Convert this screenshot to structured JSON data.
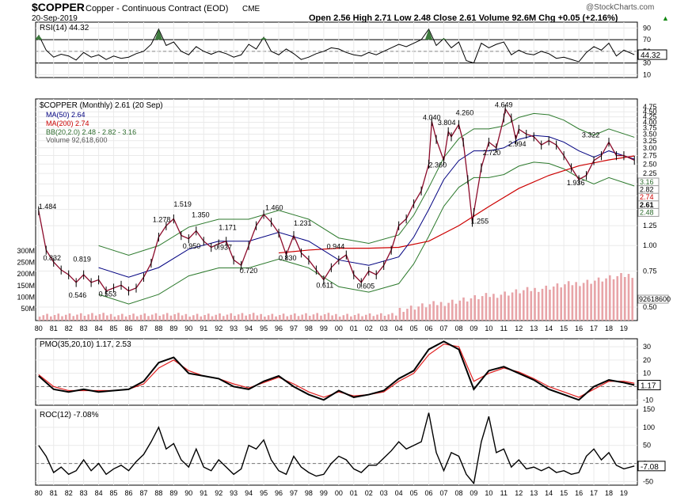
{
  "header": {
    "symbol": "$COPPER",
    "description": "Copper - Continuous Contract (EOD)",
    "exchange": "CME",
    "date": "20-Sep-2019",
    "watermark": "@StockCharts.com",
    "ohlc": "Open 2.56  High 2.71  Low 2.48  Close 2.61  Volume 92.6M  Chg +0.05 (+2.16%)",
    "ohlc_arrow": "▲"
  },
  "chart_data": [
    {
      "type": "line",
      "panel": "rsi",
      "title": "RSI(14) 44.32",
      "ylim": [
        5,
        100
      ],
      "yticks": [
        10,
        30,
        50,
        70,
        90
      ],
      "overbought": 70,
      "oversold": 30,
      "last_label": "44.32",
      "series": [
        {
          "x": [
            1980,
            1980.5,
            1981,
            1981.5,
            1982,
            1982.5,
            1983,
            1983.5,
            1984,
            1984.5,
            1985,
            1985.5,
            1986,
            1986.5,
            1987,
            1987.5,
            1988,
            1988.5,
            1989,
            1989.5,
            1990,
            1990.5,
            1991,
            1991.5,
            1992,
            1992.5,
            1993,
            1993.5,
            1994,
            1994.5,
            1995,
            1995.5,
            1996,
            1996.5,
            1997,
            1997.5,
            1998,
            1998.5,
            1999,
            1999.5,
            2000,
            2000.5,
            2001,
            2001.5,
            2002,
            2002.5,
            2003,
            2003.5,
            2004,
            2004.5,
            2005,
            2005.5,
            2006,
            2006.5,
            2007,
            2007.5,
            2008,
            2008.5,
            2009,
            2009.5,
            2010,
            2010.5,
            2011,
            2011.5,
            2012,
            2012.5,
            2013,
            2013.5,
            2014,
            2014.5,
            2015,
            2015.5,
            2016,
            2016.5,
            2017,
            2017.5,
            2018,
            2018.5,
            2019,
            2019.7
          ],
          "y": [
            78,
            52,
            40,
            45,
            42,
            35,
            48,
            40,
            44,
            36,
            42,
            38,
            40,
            46,
            50,
            62,
            88,
            60,
            66,
            50,
            44,
            58,
            50,
            45,
            50,
            46,
            40,
            44,
            62,
            54,
            74,
            50,
            44,
            54,
            46,
            36,
            40,
            46,
            50,
            56,
            54,
            48,
            44,
            42,
            48,
            44,
            50,
            56,
            62,
            58,
            64,
            70,
            88,
            60,
            72,
            56,
            66,
            34,
            30,
            64,
            56,
            62,
            66,
            44,
            52,
            46,
            44,
            50,
            46,
            38,
            40,
            36,
            32,
            48,
            58,
            52,
            64,
            42,
            52,
            44.32
          ]
        }
      ]
    },
    {
      "type": "line",
      "panel": "price",
      "title": "$COPPER (Monthly) 2.61 (20 Sep)",
      "scale": "log",
      "ylim": [
        0.43,
        5.2
      ],
      "yticks": [
        0.5,
        0.75,
        1.0,
        1.25,
        1.5,
        1.75,
        2.0,
        2.25,
        2.5,
        2.75,
        3.0,
        3.25,
        3.5,
        3.75,
        4.0,
        4.25,
        4.5,
        4.75
      ],
      "xticks": [
        "80",
        "81",
        "82",
        "83",
        "84",
        "85",
        "86",
        "87",
        "88",
        "89",
        "90",
        "91",
        "92",
        "93",
        "94",
        "95",
        "96",
        "97",
        "98",
        "99",
        "00",
        "01",
        "02",
        "03",
        "04",
        "05",
        "06",
        "07",
        "08",
        "09",
        "10",
        "11",
        "12",
        "13",
        "14",
        "15",
        "16",
        "17",
        "18",
        "19"
      ],
      "legend": [
        "MA(50) 2.64",
        "MA(200) 2.74",
        "BB(20,2.0) 2.48 - 2.82 - 3.16",
        "Volume 92,618,600"
      ],
      "series": [
        {
          "name": "$COPPER",
          "x": [
            1980,
            1980.5,
            1981,
            1981.5,
            1982,
            1982.5,
            1983,
            1983.5,
            1984,
            1984.5,
            1985,
            1985.5,
            1986,
            1986.5,
            1987,
            1987.5,
            1988,
            1988.5,
            1989,
            1989.5,
            1990,
            1990.5,
            1991,
            1991.5,
            1992,
            1992.5,
            1993,
            1993.5,
            1994,
            1994.5,
            1995,
            1995.5,
            1996,
            1996.5,
            1997,
            1997.5,
            1998,
            1998.5,
            1999,
            1999.5,
            2000,
            2000.5,
            2001,
            2001.5,
            2002,
            2002.5,
            2003,
            2003.5,
            2004,
            2004.5,
            2005,
            2005.5,
            2006,
            2006.2,
            2006.5,
            2007,
            2007.3,
            2007.5,
            2008,
            2008.3,
            2008.6,
            2008.9,
            2009,
            2009.5,
            2010,
            2010.5,
            2011,
            2011.1,
            2011.5,
            2011.8,
            2012,
            2012.5,
            2013,
            2013.5,
            2014,
            2014.5,
            2015,
            2015.5,
            2016,
            2016.5,
            2017,
            2017.5,
            2018,
            2018.5,
            2019,
            2019.7
          ],
          "y": [
            1.48,
            0.95,
            0.83,
            0.76,
            0.72,
            0.66,
            0.72,
            0.66,
            0.68,
            0.6,
            0.62,
            0.64,
            0.6,
            0.62,
            0.7,
            0.82,
            1.1,
            1.25,
            1.35,
            1.12,
            1.08,
            1.18,
            1.05,
            0.98,
            1.02,
            1.05,
            0.85,
            0.8,
            1.0,
            1.25,
            1.42,
            1.3,
            1.15,
            0.9,
            1.12,
            0.92,
            0.85,
            0.76,
            0.68,
            0.78,
            0.85,
            0.9,
            0.72,
            0.66,
            0.75,
            0.72,
            0.8,
            0.95,
            1.25,
            1.35,
            1.6,
            1.85,
            2.5,
            4.04,
            3.3,
            2.6,
            3.6,
            3.4,
            3.9,
            3.2,
            2.1,
            1.3,
            1.45,
            2.4,
            3.2,
            3.0,
            4.2,
            4.65,
            4.2,
            3.3,
            3.7,
            3.5,
            3.4,
            3.1,
            3.25,
            3.1,
            2.75,
            2.4,
            2.1,
            2.2,
            2.6,
            2.75,
            3.2,
            2.75,
            2.75,
            2.61
          ]
        },
        {
          "name": "MA(50)",
          "x": [
            1984,
            1986,
            1988,
            1990,
            1992,
            1994,
            1996,
            1998,
            2000,
            2002,
            2004,
            2005,
            2006,
            2007,
            2008,
            2009,
            2010,
            2011,
            2012,
            2013,
            2014,
            2015,
            2016,
            2017,
            2018,
            2019.7
          ],
          "y": [
            0.78,
            0.7,
            0.78,
            0.96,
            1.05,
            1.05,
            1.16,
            1.05,
            0.85,
            0.8,
            0.88,
            1.1,
            1.5,
            2.1,
            2.6,
            2.9,
            2.9,
            3.0,
            3.3,
            3.45,
            3.4,
            3.2,
            2.9,
            2.7,
            2.9,
            2.64
          ]
        },
        {
          "name": "MA(200)",
          "x": [
            1996,
            1998,
            2000,
            2002,
            2004,
            2006,
            2008,
            2010,
            2012,
            2014,
            2016,
            2018,
            2019.7
          ],
          "y": [
            0.92,
            0.95,
            0.97,
            0.97,
            0.98,
            1.05,
            1.25,
            1.55,
            1.9,
            2.2,
            2.45,
            2.62,
            2.74
          ]
        }
      ],
      "annotations": [
        {
          "x": 1980.0,
          "y": 1.484,
          "text": "1.484"
        },
        {
          "x": 1980.3,
          "y": 0.832,
          "text": "0.832"
        },
        {
          "x": 1982.3,
          "y": 0.819,
          "text": "0.819"
        },
        {
          "x": 1982.0,
          "y": 0.546,
          "text": "0.546"
        },
        {
          "x": 1984.0,
          "y": 0.553,
          "text": "0.553"
        },
        {
          "x": 1987.6,
          "y": 1.278,
          "text": "1.278"
        },
        {
          "x": 1989.0,
          "y": 1.519,
          "text": "1.519"
        },
        {
          "x": 1990.2,
          "y": 1.35,
          "text": "1.350"
        },
        {
          "x": 1989.6,
          "y": 0.95,
          "text": "0.950"
        },
        {
          "x": 1992.0,
          "y": 1.171,
          "text": "1.171"
        },
        {
          "x": 1991.7,
          "y": 0.937,
          "text": "0.937"
        },
        {
          "x": 1993.4,
          "y": 0.72,
          "text": "0.720"
        },
        {
          "x": 1995.1,
          "y": 1.46,
          "text": "1.460"
        },
        {
          "x": 1997.0,
          "y": 1.231,
          "text": "1.231"
        },
        {
          "x": 1996.0,
          "y": 0.83,
          "text": "0.830"
        },
        {
          "x": 1999.2,
          "y": 0.944,
          "text": "0.944"
        },
        {
          "x": 1998.5,
          "y": 0.611,
          "text": "0.611"
        },
        {
          "x": 2001.2,
          "y": 0.605,
          "text": "0.605"
        },
        {
          "x": 2005.6,
          "y": 4.04,
          "text": "4.040"
        },
        {
          "x": 2006.6,
          "y": 3.804,
          "text": "3.804"
        },
        {
          "x": 2006.0,
          "y": 2.36,
          "text": "2.360"
        },
        {
          "x": 2007.8,
          "y": 4.26,
          "text": "4.260"
        },
        {
          "x": 2008.8,
          "y": 1.255,
          "text": "1.255"
        },
        {
          "x": 2009.6,
          "y": 2.72,
          "text": "2.720"
        },
        {
          "x": 2010.4,
          "y": 4.649,
          "text": "4.649"
        },
        {
          "x": 2011.3,
          "y": 2.994,
          "text": "2.994"
        },
        {
          "x": 2016.2,
          "y": 3.322,
          "text": "3.322"
        },
        {
          "x": 2015.2,
          "y": 1.936,
          "text": "1.936"
        }
      ],
      "right_labels": [
        "3.16",
        "2.82",
        "2.74",
        "2.61",
        "2.48"
      ],
      "volume_axis": [
        "300M",
        "250M",
        "200M",
        "150M",
        "100M",
        "50M"
      ],
      "volume_last": "92618600"
    },
    {
      "type": "line",
      "panel": "pmo",
      "title": "PMO(35,20,10) 1.17, 2.53",
      "ylim": [
        -14,
        36
      ],
      "yticks": [
        -10,
        0,
        10,
        20,
        30
      ],
      "last_label": "1.17",
      "series": [
        {
          "name": "PMO",
          "x": [
            1980,
            1981,
            1982,
            1983,
            1984,
            1985,
            1986,
            1987,
            1988,
            1989,
            1990,
            1991,
            1992,
            1993,
            1994,
            1995,
            1996,
            1997,
            1998,
            1999,
            2000,
            2001,
            2002,
            2003,
            2004,
            2005,
            2006,
            2007,
            2008,
            2009,
            2010,
            2011,
            2012,
            2013,
            2014,
            2015,
            2016,
            2017,
            2018,
            2019,
            2019.7
          ],
          "y": [
            8,
            -2,
            -4,
            -2,
            -4,
            -3,
            -2,
            4,
            18,
            22,
            10,
            8,
            6,
            0,
            -2,
            4,
            8,
            0,
            -6,
            -10,
            -3,
            -8,
            -6,
            -3,
            6,
            12,
            28,
            34,
            28,
            -2,
            12,
            15,
            10,
            5,
            -2,
            -6,
            -10,
            0,
            5,
            3,
            1.17
          ]
        },
        {
          "name": "Signal",
          "x": [
            1980,
            1981,
            1982,
            1983,
            1984,
            1985,
            1986,
            1987,
            1988,
            1989,
            1990,
            1991,
            1992,
            1993,
            1994,
            1995,
            1996,
            1997,
            1998,
            1999,
            2000,
            2001,
            2002,
            2003,
            2004,
            2005,
            2006,
            2007,
            2008,
            2009,
            2010,
            2011,
            2012,
            2013,
            2014,
            2015,
            2016,
            2017,
            2018,
            2019,
            2019.7
          ],
          "y": [
            9,
            0,
            -3,
            -3,
            -3,
            -3,
            -2,
            2,
            14,
            20,
            12,
            8,
            6,
            2,
            -1,
            3,
            7,
            2,
            -4,
            -8,
            -4,
            -7,
            -6,
            -4,
            4,
            10,
            24,
            32,
            30,
            4,
            10,
            14,
            11,
            6,
            0,
            -4,
            -8,
            -2,
            4,
            4,
            2.53
          ]
        }
      ]
    },
    {
      "type": "line",
      "panel": "roc",
      "title": "ROC(12) -7.08%",
      "ylim": [
        -60,
        150
      ],
      "yticks": [
        -50,
        0,
        50,
        100,
        150
      ],
      "last_label": "-7.08",
      "xticks": [
        "80",
        "81",
        "82",
        "83",
        "84",
        "85",
        "86",
        "87",
        "88",
        "89",
        "90",
        "91",
        "92",
        "93",
        "94",
        "95",
        "96",
        "97",
        "98",
        "99",
        "00",
        "01",
        "02",
        "03",
        "04",
        "05",
        "06",
        "07",
        "08",
        "09",
        "10",
        "11",
        "12",
        "13",
        "14",
        "15",
        "16",
        "17",
        "18",
        "19"
      ],
      "series": [
        {
          "x": [
            1980,
            1980.5,
            1981,
            1981.5,
            1982,
            1982.5,
            1983,
            1983.5,
            1984,
            1984.5,
            1985,
            1985.5,
            1986,
            1986.5,
            1987,
            1987.5,
            1988,
            1988.5,
            1989,
            1989.5,
            1990,
            1990.5,
            1991,
            1991.5,
            1992,
            1992.5,
            1993,
            1993.5,
            1994,
            1994.5,
            1995,
            1995.5,
            1996,
            1996.5,
            1997,
            1997.5,
            1998,
            1998.5,
            1999,
            1999.5,
            2000,
            2000.5,
            2001,
            2001.5,
            2002,
            2002.5,
            2003,
            2003.5,
            2004,
            2004.5,
            2005,
            2005.5,
            2006,
            2006.5,
            2007,
            2007.5,
            2008,
            2008.5,
            2009,
            2009.5,
            2010,
            2010.5,
            2011,
            2011.5,
            2012,
            2012.5,
            2013,
            2013.5,
            2014,
            2014.5,
            2015,
            2015.5,
            2016,
            2016.5,
            2017,
            2017.5,
            2018,
            2018.5,
            2019,
            2019.7
          ],
          "y": [
            50,
            20,
            -25,
            -10,
            -30,
            -20,
            10,
            -20,
            0,
            -30,
            -15,
            -5,
            -20,
            5,
            25,
            60,
            100,
            40,
            55,
            10,
            -10,
            40,
            -10,
            -20,
            10,
            -10,
            -30,
            -15,
            50,
            40,
            65,
            10,
            -20,
            -30,
            20,
            -10,
            -25,
            -35,
            -30,
            0,
            20,
            10,
            -15,
            -25,
            -5,
            -5,
            15,
            35,
            60,
            40,
            50,
            60,
            140,
            30,
            -20,
            30,
            20,
            -30,
            -55,
            60,
            130,
            30,
            40,
            -10,
            10,
            -15,
            -10,
            -20,
            -10,
            -25,
            -20,
            -30,
            -25,
            20,
            40,
            10,
            30,
            -5,
            -15,
            -7.08
          ]
        }
      ]
    }
  ]
}
